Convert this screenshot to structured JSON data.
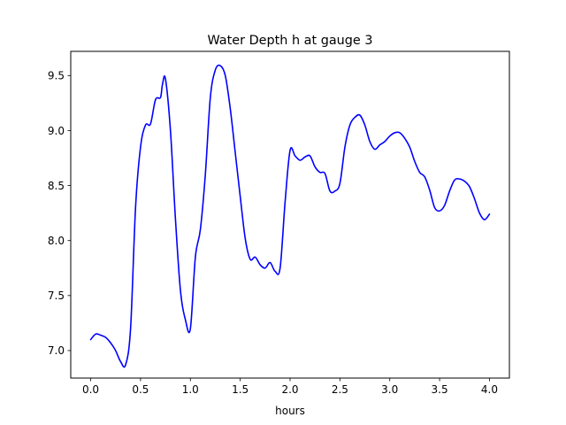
{
  "chart_data": {
    "type": "line",
    "title": "Water Depth h at gauge 3",
    "xlabel": "hours",
    "ylabel": "",
    "xlim": [
      -0.2,
      4.2
    ],
    "ylim": [
      6.75,
      9.72
    ],
    "xticks": [
      0.0,
      0.5,
      1.0,
      1.5,
      2.0,
      2.5,
      3.0,
      3.5,
      4.0
    ],
    "xtick_labels": [
      "0.0",
      "0.5",
      "1.0",
      "1.5",
      "2.0",
      "2.5",
      "3.0",
      "3.5",
      "4.0"
    ],
    "yticks": [
      7.0,
      7.5,
      8.0,
      8.5,
      9.0,
      9.5
    ],
    "ytick_labels": [
      "7.0",
      "7.5",
      "8.0",
      "8.5",
      "9.0",
      "9.5"
    ],
    "grid": false,
    "series": [
      {
        "color": "#0000ff",
        "x": [
          0.0,
          0.05,
          0.1,
          0.15,
          0.2,
          0.25,
          0.3,
          0.35,
          0.4,
          0.45,
          0.5,
          0.55,
          0.6,
          0.65,
          0.7,
          0.72,
          0.75,
          0.8,
          0.85,
          0.9,
          0.95,
          1.0,
          1.05,
          1.1,
          1.15,
          1.2,
          1.25,
          1.3,
          1.35,
          1.4,
          1.45,
          1.5,
          1.55,
          1.6,
          1.65,
          1.7,
          1.75,
          1.8,
          1.85,
          1.9,
          1.95,
          2.0,
          2.05,
          2.1,
          2.15,
          2.2,
          2.25,
          2.3,
          2.35,
          2.4,
          2.45,
          2.5,
          2.55,
          2.6,
          2.65,
          2.7,
          2.75,
          2.8,
          2.85,
          2.9,
          2.95,
          3.0,
          3.05,
          3.1,
          3.15,
          3.2,
          3.25,
          3.3,
          3.35,
          3.4,
          3.45,
          3.5,
          3.55,
          3.6,
          3.65,
          3.7,
          3.75,
          3.8,
          3.85,
          3.9,
          3.95,
          4.0
        ],
        "y": [
          7.1,
          7.15,
          7.14,
          7.12,
          7.07,
          7.0,
          6.9,
          6.87,
          7.2,
          8.3,
          8.85,
          9.05,
          9.06,
          9.28,
          9.3,
          9.42,
          9.47,
          9.0,
          8.2,
          7.55,
          7.28,
          7.2,
          7.85,
          8.1,
          8.6,
          9.3,
          9.55,
          9.59,
          9.5,
          9.2,
          8.8,
          8.4,
          8.02,
          7.83,
          7.85,
          7.78,
          7.75,
          7.8,
          7.72,
          7.75,
          8.35,
          8.82,
          8.77,
          8.73,
          8.76,
          8.77,
          8.67,
          8.62,
          8.61,
          8.45,
          8.45,
          8.52,
          8.85,
          9.05,
          9.12,
          9.14,
          9.05,
          8.9,
          8.83,
          8.87,
          8.9,
          8.95,
          8.98,
          8.98,
          8.93,
          8.85,
          8.72,
          8.62,
          8.58,
          8.46,
          8.3,
          8.27,
          8.32,
          8.45,
          8.55,
          8.56,
          8.54,
          8.49,
          8.38,
          8.25,
          8.19,
          8.24
        ]
      }
    ]
  }
}
